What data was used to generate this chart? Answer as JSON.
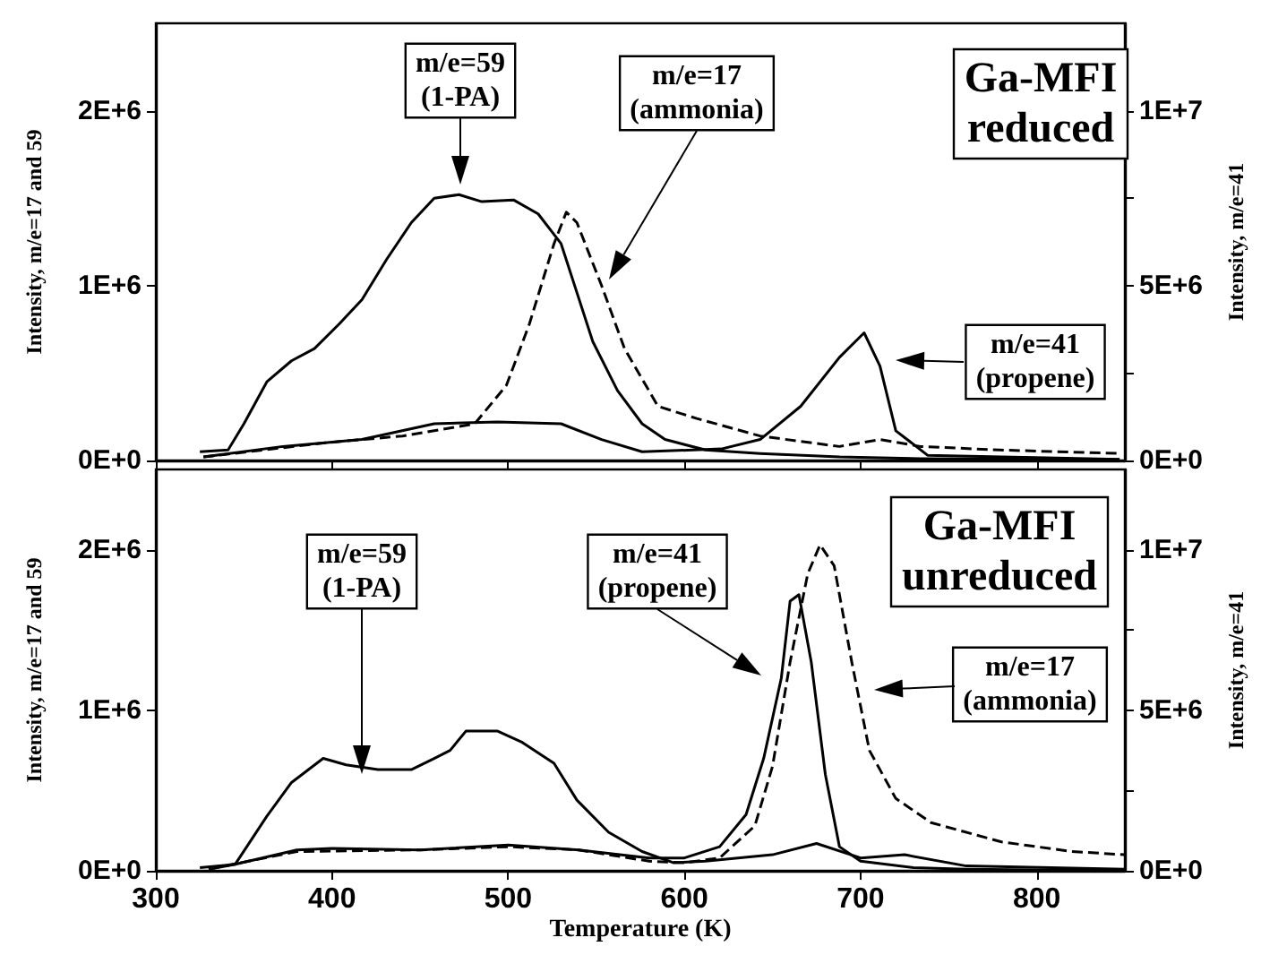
{
  "chart_data": [
    {
      "type": "line",
      "title": "Ga-MFI\nreduced",
      "ylabel": "Intensity, m/e=17 and 59",
      "y2label": "Intensity, m/e=41",
      "xlim": [
        300,
        850
      ],
      "xticks": [
        300,
        400,
        500,
        600,
        700,
        800
      ],
      "ylim": [
        0,
        2500000
      ],
      "yticks": [
        {
          "value": 0,
          "label": "0E+0"
        },
        {
          "value": 1000000,
          "label": "1E+6"
        },
        {
          "value": 2000000,
          "label": "2E+6"
        }
      ],
      "y2lim": [
        0,
        12500000
      ],
      "y2ticks": [
        {
          "value": 0,
          "label": "0E+0"
        },
        {
          "value": 2500000,
          "label": null
        },
        {
          "value": 5000000,
          "label": "5E+6"
        },
        {
          "value": 7500000,
          "label": null
        },
        {
          "value": 10000000,
          "label": "1E+7"
        }
      ],
      "tick_labels": "y",
      "marker": "none",
      "grid": false,
      "annotations": [
        "m/e=59\n(1-PA)",
        "m/e=17\n(ammonia)",
        "m/e=41\n(propene)"
      ],
      "series": [
        {
          "color": "#000000",
          "line_style": "solid",
          "x": [
            325,
            341,
            350,
            363,
            377,
            390,
            404,
            417,
            431,
            445,
            458,
            472,
            485,
            503,
            517,
            530,
            539,
            548,
            562,
            576,
            589,
            612,
            643,
            688,
            734,
            847
          ],
          "values": [
            50000,
            60000,
            210000,
            450000,
            570000,
            640000,
            780000,
            920000,
            1150000,
            1360000,
            1500000,
            1520000,
            1480000,
            1490000,
            1410000,
            1240000,
            960000,
            680000,
            400000,
            210000,
            120000,
            60000,
            40000,
            20000,
            10000,
            5000
          ]
        },
        {
          "color": "#000000",
          "line_style": "dashed",
          "x": [
            327,
            395,
            440,
            481,
            499,
            512,
            526,
            533,
            539,
            553,
            566,
            585,
            607,
            643,
            688,
            711,
            734,
            779,
            847
          ],
          "values": [
            20000,
            100000,
            140000,
            210000,
            430000,
            780000,
            1240000,
            1420000,
            1360000,
            1000000,
            640000,
            310000,
            240000,
            140000,
            80000,
            120000,
            80000,
            60000,
            40000
          ]
        },
        {
          "color": "#000000",
          "line_style": "solid",
          "axis": "y2",
          "x": [
            327,
            372,
            417,
            458,
            494,
            530,
            553,
            576,
            621,
            643,
            666,
            688,
            702,
            711,
            720,
            738,
            847
          ],
          "values": [
            100000,
            400000,
            600000,
            1050000,
            1100000,
            1050000,
            600000,
            250000,
            330000,
            600000,
            1550000,
            2950000,
            3650000,
            2700000,
            850000,
            150000,
            30000
          ]
        }
      ]
    },
    {
      "type": "line",
      "title": "Ga-MFI\nunreduced",
      "xlabel": "Temperature (K)",
      "ylabel": "Intensity, m/e=17 and 59",
      "y2label": "Intensity, m/e=41",
      "xlim": [
        300,
        850
      ],
      "xticks": [
        300,
        400,
        500,
        600,
        700,
        800
      ],
      "ylim": [
        0,
        2500000
      ],
      "yticks": [
        {
          "value": 0,
          "label": "0E+0"
        },
        {
          "value": 1000000,
          "label": "1E+6"
        },
        {
          "value": 2000000,
          "label": "2E+6"
        }
      ],
      "y2lim": [
        0,
        12500000
      ],
      "y2ticks": [
        {
          "value": 0,
          "label": "0E+0"
        },
        {
          "value": 2500000,
          "label": null
        },
        {
          "value": 5000000,
          "label": "5E+6"
        },
        {
          "value": 7500000,
          "label": null
        },
        {
          "value": 10000000,
          "label": "1E+7"
        }
      ],
      "marker": "none",
      "grid": false,
      "annotations": [
        "m/e=59\n(1-PA)",
        "m/e=41\n(propene)",
        "m/e=17\n(ammonia)"
      ],
      "series": [
        {
          "color": "#000000",
          "line_style": "solid",
          "x": [
            325,
            345,
            363,
            377,
            395,
            408,
            426,
            445,
            458,
            467,
            476,
            494,
            508,
            526,
            539,
            557,
            576,
            594,
            612,
            650,
            675,
            700,
            725,
            760,
            850
          ],
          "values": [
            20000,
            40000,
            340000,
            550000,
            700000,
            660000,
            630000,
            630000,
            700000,
            750000,
            870000,
            870000,
            800000,
            670000,
            440000,
            240000,
            120000,
            50000,
            60000,
            100000,
            170000,
            80000,
            100000,
            30000,
            10000
          ]
        },
        {
          "color": "#000000",
          "line_style": "solid",
          "axis": "y2",
          "x": [
            330,
            345,
            380,
            400,
            450,
            500,
            540,
            580,
            600,
            620,
            635,
            645,
            655,
            660,
            665,
            672,
            680,
            688,
            700,
            730,
            760,
            850
          ],
          "values": [
            50000,
            200000,
            650000,
            700000,
            650000,
            800000,
            650000,
            400000,
            400000,
            750000,
            1750000,
            3500000,
            6000000,
            8400000,
            8600000,
            6500000,
            3000000,
            750000,
            300000,
            100000,
            50000,
            0
          ]
        },
        {
          "color": "#000000",
          "line_style": "dashed",
          "x": [
            330,
            380,
            450,
            500,
            540,
            580,
            600,
            620,
            640,
            650,
            660,
            670,
            677,
            685,
            695,
            705,
            720,
            740,
            780,
            820,
            850
          ],
          "values": [
            10000,
            120000,
            130000,
            150000,
            130000,
            60000,
            50000,
            80000,
            280000,
            650000,
            1300000,
            1850000,
            2030000,
            1900000,
            1300000,
            750000,
            450000,
            300000,
            180000,
            120000,
            100000
          ]
        }
      ]
    }
  ]
}
